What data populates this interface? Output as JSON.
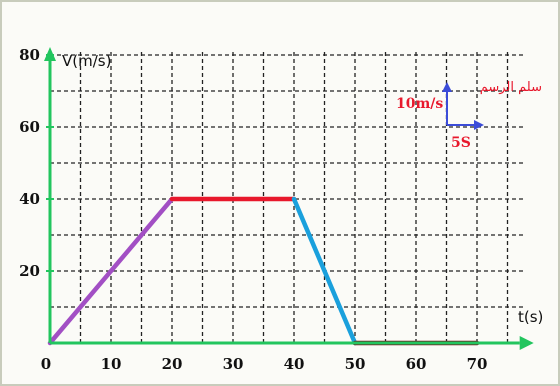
{
  "chart_data": {
    "type": "line",
    "xlabel": "t(s)",
    "ylabel": "V(m/s)",
    "xlim": [
      0,
      70
    ],
    "ylim": [
      0,
      80
    ],
    "x_ticks": [
      0,
      10,
      20,
      30,
      40,
      50,
      60,
      70
    ],
    "y_ticks": [
      20,
      40,
      60,
      80
    ],
    "grid": true,
    "series": [
      {
        "x": [
          0,
          20
        ],
        "y": [
          0,
          40
        ],
        "color": "#a24fc4"
      },
      {
        "x": [
          20,
          40
        ],
        "y": [
          40,
          40
        ],
        "color": "#e8182c"
      },
      {
        "x": [
          40,
          50
        ],
        "y": [
          40,
          0
        ],
        "color": "#1aa0dc"
      },
      {
        "x": [
          50,
          70
        ],
        "y": [
          0,
          0
        ],
        "color": "#6e1014"
      }
    ],
    "scale": {
      "title": "سلم الرسم",
      "vertical": "10m/s",
      "horizontal": "5S"
    },
    "colors": {
      "axis": "#22c55e",
      "grid": "#222222",
      "scale_arrow": "#3b4cd8"
    }
  }
}
